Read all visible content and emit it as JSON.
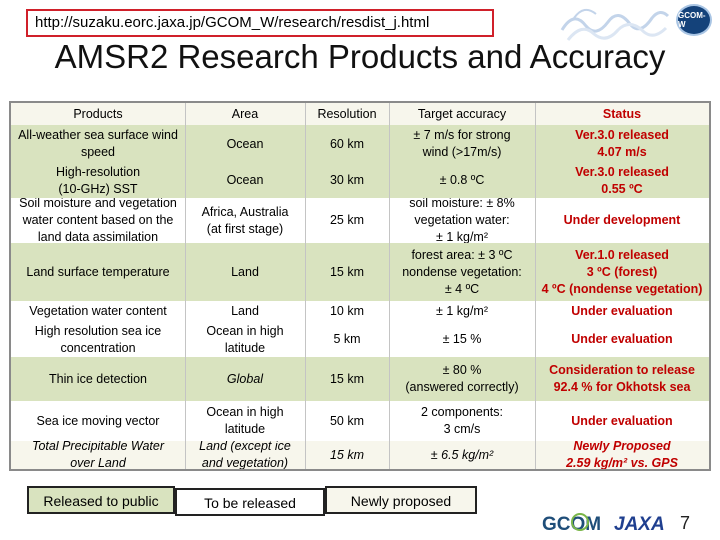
{
  "header": {
    "url": "http://suzaku.eorc.jaxa.jp/GCOM_W/research/resdist_j.html",
    "badge_text": "GCOM-W",
    "title": "AMSR2 Research Products and Accuracy"
  },
  "table": {
    "columns": [
      "Products",
      "Area",
      "Resolution",
      "Target accuracy",
      "Status"
    ],
    "rows": [
      {
        "product": [
          "All-weather sea surface wind",
          "speed"
        ],
        "area": [
          "Ocean"
        ],
        "resolution": "60 km",
        "accuracy": [
          "± 7 m/s for strong",
          "wind (>17m/s)"
        ],
        "status": [
          "Ver.3.0 released",
          "4.07 m/s"
        ]
      },
      {
        "product": [
          "High-resolution",
          "(10-GHz) SST"
        ],
        "area": [
          "Ocean"
        ],
        "resolution": "30 km",
        "accuracy": [
          "± 0.8 ºC"
        ],
        "status": [
          "Ver.3.0 released",
          "0.55 ºC"
        ]
      },
      {
        "product": [
          "Soil moisture and vegetation",
          "water content based on the",
          "land data assimilation"
        ],
        "area": [
          "Africa, Australia",
          "(at first stage)"
        ],
        "resolution": "25 km",
        "accuracy": [
          "soil moisture: ± 8%",
          "vegetation water:",
          "± 1 kg/m²"
        ],
        "status": [
          "Under development"
        ]
      },
      {
        "product": [
          "Land surface temperature"
        ],
        "area": [
          "Land"
        ],
        "resolution": "15 km",
        "accuracy": [
          "forest area: ± 3 ºC",
          "nondense vegetation:",
          "± 4 ºC"
        ],
        "status": [
          "Ver.1.0 released",
          "3 ºC (forest)",
          "4 ºC (nondense vegetation)"
        ]
      },
      {
        "product": [
          "Vegetation water content"
        ],
        "area": [
          "Land"
        ],
        "resolution": "10 km",
        "accuracy": [
          "± 1 kg/m²"
        ],
        "status": [
          "Under evaluation"
        ]
      },
      {
        "product": [
          "High resolution sea ice",
          "concentration"
        ],
        "area": [
          "Ocean in high",
          "latitude"
        ],
        "resolution": "5 km",
        "accuracy": [
          "± 15 %"
        ],
        "status": [
          "Under evaluation"
        ]
      },
      {
        "product": [
          "Thin ice detection"
        ],
        "area": [
          "Global"
        ],
        "resolution": "15 km",
        "accuracy": [
          "± 80 %",
          "(answered correctly)"
        ],
        "status": [
          "Consideration to release",
          "92.4 % for Okhotsk sea"
        ]
      },
      {
        "product": [
          "Sea ice moving vector"
        ],
        "area": [
          "Ocean in high",
          "latitude"
        ],
        "resolution": "50 km",
        "accuracy": [
          "2 components:",
          "3 cm/s"
        ],
        "status": [
          "Under evaluation"
        ]
      },
      {
        "product": [
          "Total Precipitable Water",
          "over Land"
        ],
        "area": [
          "Land (except ice",
          "and vegetation)"
        ],
        "resolution": "15 km",
        "accuracy": [
          "± 6.5 kg/m²"
        ],
        "status": [
          "Newly Proposed",
          "2.59 kg/m² vs. GPS"
        ]
      }
    ]
  },
  "legend": {
    "released": "Released to public",
    "to_be_released": "To be released",
    "newly_proposed": "Newly proposed"
  },
  "colors": {
    "url_border": "#d0202a",
    "status_red": "#c00000",
    "released_green": "#d9e3bf",
    "proposed_bg": "#f7f6ec"
  },
  "footer": {
    "logo_text": "GCOM",
    "agency_text": "JAXA",
    "page_number": "7"
  }
}
